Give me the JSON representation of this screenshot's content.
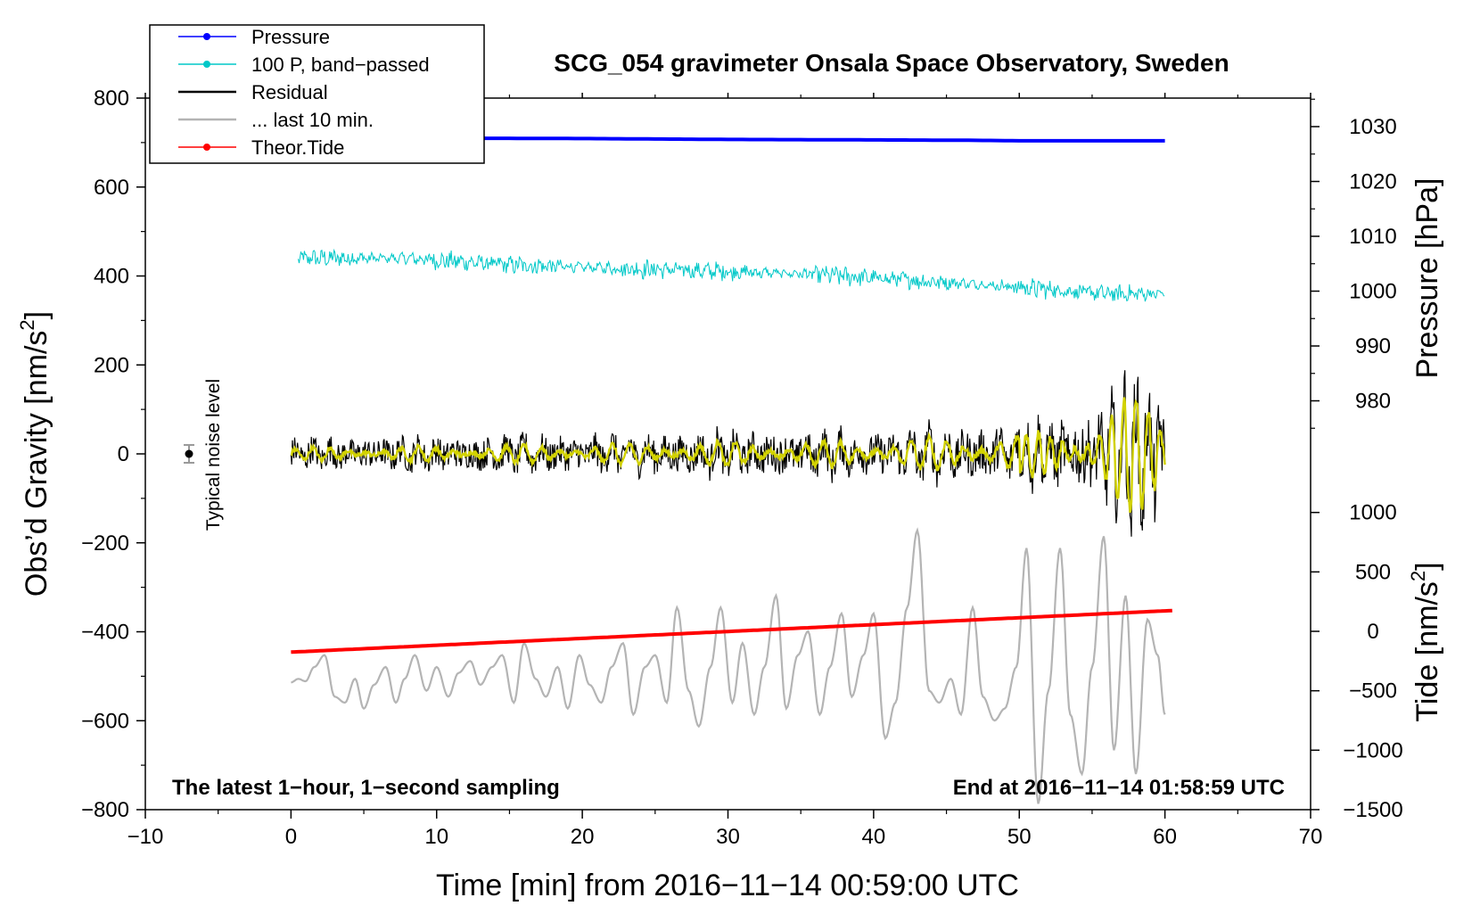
{
  "chart_data": {
    "type": "line",
    "title": "SCG_054 gravimeter Onsala Space Observatory, Sweden",
    "xlabel": "Time [min] from 2016−11−14 00:59:00 UTC",
    "ylabel_left": "Obs'd Gravity [nm/s2]",
    "ylabel_left_main": "Obs’d Gravity [nm/s",
    "ylabel_left_sup": "2",
    "ylabel_left_close": "]",
    "ylabel_right_pressure": "Pressure [hPa]",
    "ylabel_right_tide_main": "Tide [nm/s",
    "ylabel_right_tide_sup": "2",
    "ylabel_right_tide_close": "]",
    "xlim": [
      -10,
      70
    ],
    "ylim_left": [
      -800,
      800
    ],
    "pressure_axis_ticks": [
      980,
      990,
      1000,
      1010,
      1020,
      1030
    ],
    "tide_axis_ticks": [
      -1500,
      -1000,
      -500,
      0,
      500,
      1000
    ],
    "x_ticks": [
      -10,
      0,
      10,
      20,
      30,
      40,
      50,
      60,
      70
    ],
    "x_tick_labels": [
      "−10",
      "0",
      "10",
      "20",
      "30",
      "40",
      "50",
      "60",
      "70"
    ],
    "y_ticks": [
      -800,
      -600,
      -400,
      -200,
      0,
      200,
      400,
      600,
      800
    ],
    "y_tick_labels": [
      "−800",
      "−600",
      "−400",
      "−200",
      "0",
      "200",
      "400",
      "600",
      "800"
    ],
    "pressure_tick_labels": [
      "980",
      "990",
      "1000",
      "1010",
      "1020",
      "1030"
    ],
    "tide_tick_labels": [
      "−1500",
      "−1000",
      "−500",
      "0",
      "500",
      "1000"
    ],
    "legend": [
      {
        "label": "Pressure",
        "color": "#0000ff",
        "marker": true
      },
      {
        "label": "100 P, band−passed",
        "color": "#00c8c8",
        "marker": true
      },
      {
        "label": "Residual",
        "color": "#000000",
        "marker": false
      },
      {
        "label": "... last 10 min.",
        "color": "#b4b4b4",
        "marker": false
      },
      {
        "label": "Theor.Tide",
        "color": "#ff0000",
        "marker": true
      }
    ],
    "annotations": {
      "left_bottom": "The latest 1−hour, 1−second sampling",
      "right_bottom": "End at 2016−11−14 01:58:59 UTC",
      "noise_label": "Typical noise level"
    },
    "noise_level": {
      "x": -7,
      "y": 0,
      "err": 20
    },
    "series": [
      {
        "name": "Pressure",
        "color": "#0000ff",
        "unit": "plotted nm/s2",
        "x": [
          0,
          10,
          20,
          30,
          40,
          47,
          50,
          60
        ],
        "y": [
          712,
          710,
          709,
          707,
          706,
          705,
          704,
          704
        ]
      },
      {
        "name": "100 P, band−passed",
        "color": "#00c8c8",
        "unit": "plotted nm/s2",
        "trend_x": [
          0.5,
          8,
          15,
          25,
          35,
          43,
          50,
          56,
          60
        ],
        "trend_y": [
          440,
          440,
          425,
          415,
          405,
          390,
          375,
          360,
          360
        ]
      },
      {
        "name": "Residual",
        "color": "#000000",
        "unit": "nm/s2",
        "envelope_x": [
          0,
          10,
          20,
          30,
          40,
          50,
          54,
          56,
          57,
          58,
          59,
          60
        ],
        "envelope_amp": [
          25,
          30,
          40,
          50,
          55,
          80,
          120,
          160,
          220,
          250,
          230,
          180
        ]
      },
      {
        "name": "Residual smoothed",
        "color": "#d2d200",
        "unit": "nm/s2"
      },
      {
        "name": "... last 10 min.",
        "color": "#b4b4b4",
        "unit": "tide nm/s2",
        "x": [
          0,
          0.5,
          1,
          1.6,
          2.3,
          3,
          3.7,
          4.4,
          5,
          5.7,
          6.5,
          7.2,
          7.8,
          8.5,
          9.3,
          10,
          10.8,
          11.5,
          12.3,
          13,
          13.8,
          14.5,
          15.3,
          16,
          16.8,
          17.5,
          18.3,
          19,
          19.8,
          20.5,
          21.3,
          22,
          22.8,
          23.5,
          24.3,
          25,
          25.8,
          26.5,
          27.3,
          28,
          28.8,
          29.5,
          30.3,
          31,
          31.8,
          32.5,
          33.3,
          34,
          34.8,
          35.5,
          36.3,
          37,
          37.8,
          38.5,
          39.3,
          40,
          40.8,
          41.5,
          42.3,
          43,
          43.8,
          44.5,
          45.3,
          46,
          46.8,
          47.5,
          48.3,
          49,
          49.8,
          50.5,
          51.3,
          52,
          52.8,
          53.5,
          54.3,
          55,
          55.8,
          56.5,
          57.3,
          58,
          58.8,
          59.5,
          60
        ],
        "y": [
          -430,
          -400,
          -420,
          -300,
          -200,
          -550,
          -600,
          -400,
          -650,
          -450,
          -300,
          -600,
          -400,
          -200,
          -500,
          -300,
          -550,
          -350,
          -250,
          -450,
          -300,
          -200,
          -600,
          -100,
          -400,
          -550,
          -300,
          -650,
          -200,
          -450,
          -600,
          -300,
          -100,
          -700,
          -300,
          -200,
          -600,
          200,
          -500,
          -800,
          -300,
          200,
          -600,
          -100,
          -700,
          -300,
          300,
          -650,
          -200,
          0,
          -700,
          -300,
          150,
          -550,
          -200,
          150,
          -900,
          -600,
          200,
          850,
          -500,
          -600,
          -400,
          -700,
          200,
          -550,
          -750,
          -650,
          -300,
          700,
          -1450,
          -500,
          700,
          -700,
          -1200,
          -300,
          800,
          -1000,
          300,
          -1200,
          100,
          -200,
          -700
        ]
      },
      {
        "name": "Theor.Tide",
        "color": "#ff0000",
        "unit": "tide nm/s2",
        "x": [
          0,
          60.5
        ],
        "y": [
          -175,
          175
        ]
      }
    ]
  }
}
